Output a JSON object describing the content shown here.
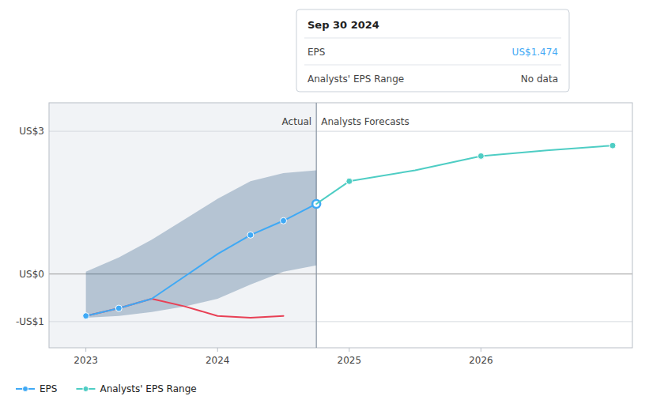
{
  "chart_data": {
    "type": "line",
    "xlim": [
      2022.72,
      2027.15
    ],
    "ylim": [
      -1.55,
      3.6
    ],
    "xticks": [
      2023,
      2024,
      2025,
      2026
    ],
    "yticks": [
      {
        "value": -1.0,
        "label": "-US$1"
      },
      {
        "value": 0.0,
        "label": "US$0"
      },
      {
        "value": 3.0,
        "label": "US$3"
      }
    ],
    "grid": true,
    "legend": "bottom-left",
    "series": [
      {
        "type": "area",
        "color": "#1a4a7a",
        "x": [
          2023.0,
          2023.25,
          2023.5,
          2023.75,
          2024.0,
          2024.25,
          2024.5,
          2024.75
        ],
        "upper": [
          0.05,
          0.35,
          0.72,
          1.15,
          1.58,
          1.95,
          2.12,
          2.18
        ],
        "lower": [
          -0.92,
          -0.88,
          -0.8,
          -0.68,
          -0.52,
          -0.22,
          0.05,
          0.18
        ]
      },
      {
        "type": "line",
        "color": "#e84055",
        "x": [
          2023.0,
          2023.25,
          2023.5,
          2023.75,
          2024.0,
          2024.25,
          2024.5
        ],
        "values": [
          -0.88,
          -0.72,
          -0.52,
          -0.68,
          -0.88,
          -0.92,
          -0.88
        ]
      },
      {
        "type": "line",
        "name": "EPS",
        "color": "#3fa9f5",
        "x": [
          2023.0,
          2023.25,
          2023.5,
          2023.75,
          2024.0,
          2024.25,
          2024.5,
          2024.75
        ],
        "values": [
          -0.88,
          -0.72,
          -0.52,
          -0.05,
          0.42,
          0.82,
          1.12,
          1.474
        ]
      },
      {
        "type": "scatter",
        "color": "#3fa9f5",
        "marker": "circle",
        "x": [
          2023.0,
          2023.25,
          2024.25,
          2024.5
        ],
        "values": [
          -0.88,
          -0.72,
          0.82,
          1.12
        ]
      },
      {
        "type": "scatter",
        "color": "#3fa9f5",
        "marker": "ring",
        "x": [
          2024.75
        ],
        "values": [
          1.474
        ]
      },
      {
        "type": "line",
        "name": "Analysts' EPS Range",
        "color": "#4ecdc4",
        "x": [
          2024.75,
          2025.0,
          2025.5,
          2026.0,
          2026.5,
          2027.0
        ],
        "values": [
          1.474,
          1.95,
          2.18,
          2.48,
          2.6,
          2.7
        ]
      },
      {
        "type": "scatter",
        "color": "#4ecdc4",
        "marker": "circle",
        "x": [
          2025.0,
          2026.0,
          2027.0
        ],
        "values": [
          1.95,
          2.48,
          2.7
        ]
      }
    ],
    "divider": {
      "x": 2024.75,
      "left_label": "Actual",
      "right_label": "Analysts Forecasts"
    },
    "tooltip": {
      "title": "Sep 30 2024",
      "rows": [
        {
          "label": "EPS",
          "value": "US$1.474",
          "color": "#3fa9f5"
        },
        {
          "label": "Analysts' EPS Range",
          "value": "No data"
        }
      ]
    }
  }
}
